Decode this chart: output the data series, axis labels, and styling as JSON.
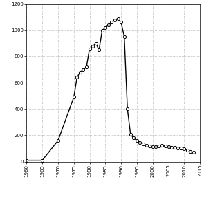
{
  "years": [
    1960,
    1965,
    1970,
    1975,
    1976,
    1977,
    1978,
    1979,
    1980,
    1981,
    1982,
    1983,
    1984,
    1985,
    1986,
    1987,
    1988,
    1989,
    1990,
    1991,
    1992,
    1993,
    1994,
    1995,
    1996,
    1997,
    1998,
    1999,
    2000,
    2001,
    2002,
    2003,
    2004,
    2005,
    2006,
    2007,
    2008,
    2009,
    2010,
    2011,
    2012,
    2013
  ],
  "values": [
    10,
    10,
    160,
    490,
    640,
    680,
    700,
    720,
    860,
    880,
    900,
    850,
    1000,
    1020,
    1040,
    1060,
    1080,
    1090,
    1060,
    950,
    400,
    205,
    180,
    160,
    145,
    135,
    125,
    120,
    115,
    115,
    120,
    125,
    120,
    115,
    110,
    110,
    105,
    100,
    95,
    85,
    75,
    70
  ],
  "xlim": [
    1960,
    2015
  ],
  "ylim": [
    0,
    1200
  ],
  "xticks": [
    1960,
    1965,
    1970,
    1975,
    1980,
    1985,
    1990,
    1995,
    2000,
    2005,
    2010,
    2015
  ],
  "yticks": [
    0,
    200,
    400,
    600,
    800,
    1000,
    1200
  ],
  "line_color": "#000000",
  "marker_color": "#ffffff",
  "marker_edge_color": "#000000",
  "bg_color": "#ffffff",
  "grid_color": "#999999",
  "tick_labelsize": 5,
  "marker_size": 3,
  "linewidth": 1.0
}
